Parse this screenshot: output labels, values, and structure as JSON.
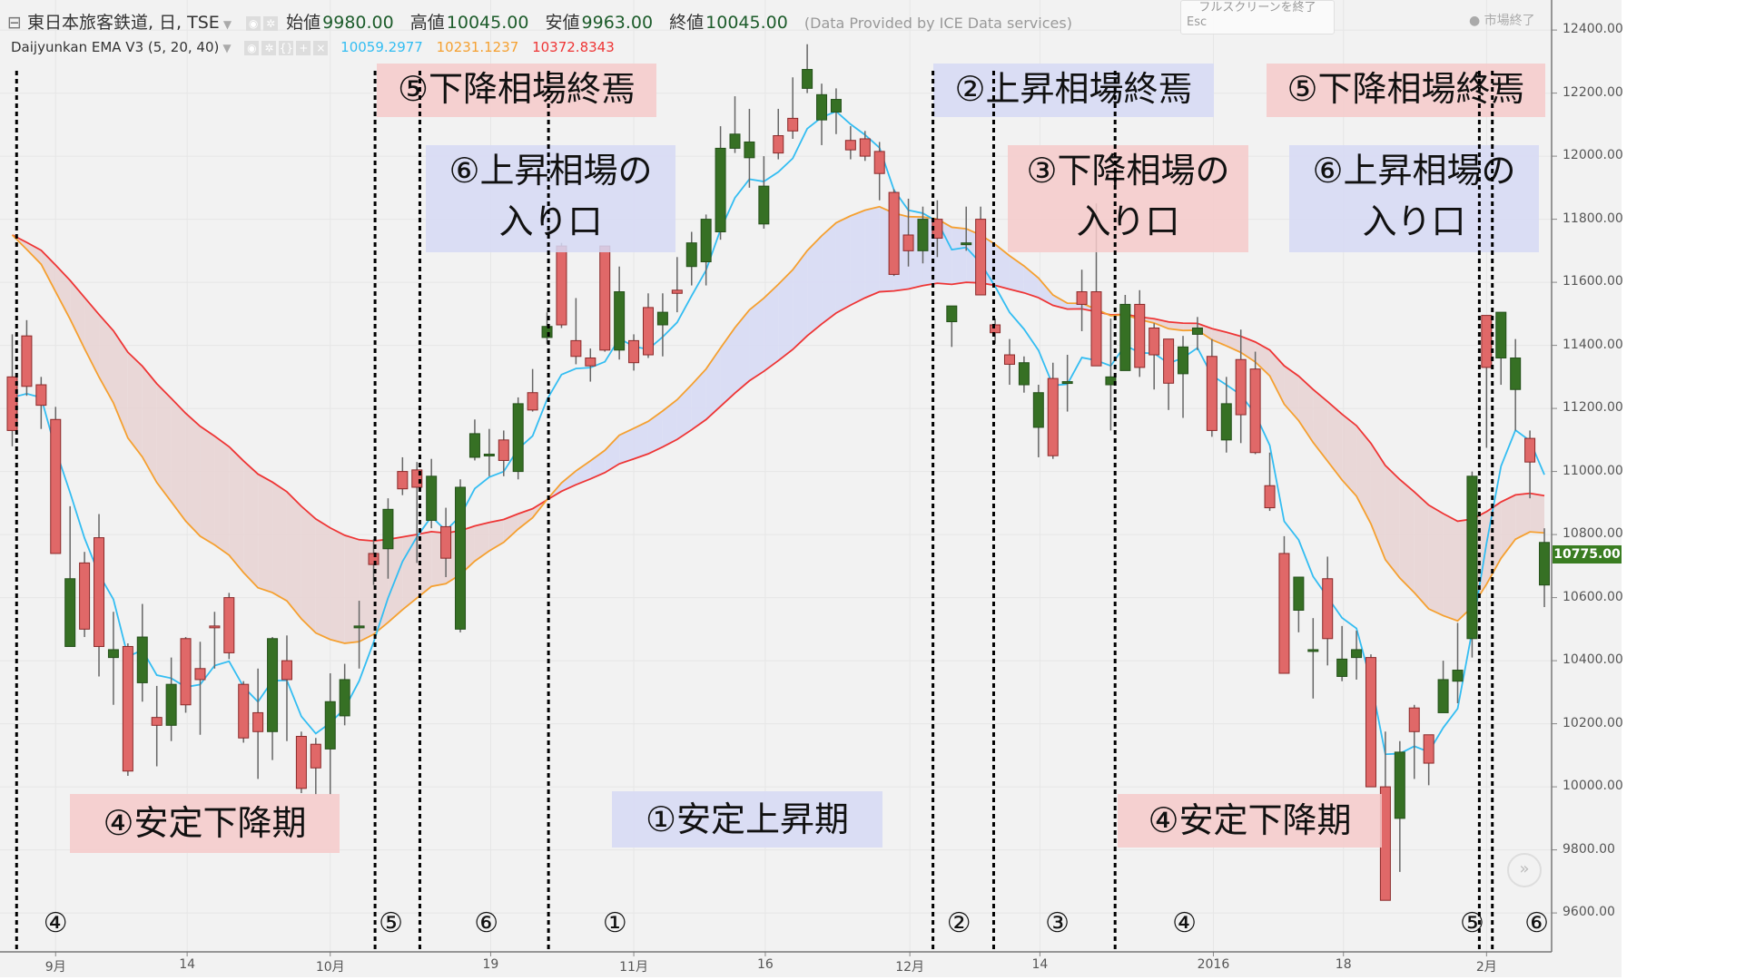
{
  "header": {
    "symbol": "東日本旅客鉄道, 日, TSE",
    "open_label": "始値",
    "open": "9980.00",
    "high_label": "高値",
    "high": "10045.00",
    "low_label": "安値",
    "low": "9963.00",
    "close_label": "終値",
    "close": "10045.00",
    "provider": "(Data Provided by ICE Data services)",
    "tooltip": "フルスクリーンを終了",
    "tooltip_key": "Esc",
    "market_status": "● 市場終了"
  },
  "indicator": {
    "name": "Daijyunkan EMA V3 (5, 20, 40)",
    "ema5": "10059.2977",
    "ema20": "10231.1237",
    "ema40": "10372.8343",
    "colors": {
      "ema5": "#33bdf2",
      "ema20": "#f5a030",
      "ema40": "#ee3535"
    }
  },
  "annotations": {
    "boxes": [
      {
        "line1": "⑤下降相場終焉",
        "line2": "",
        "color": "pink"
      },
      {
        "line1": "⑥上昇相場の",
        "line2": "入り口",
        "color": "blue"
      },
      {
        "line1": "②上昇相場終焉",
        "line2": "",
        "color": "blue"
      },
      {
        "line1": "③下降相場の",
        "line2": "入り口",
        "color": "pink"
      },
      {
        "line1": "⑤下降相場終焉",
        "line2": "",
        "color": "pink"
      },
      {
        "line1": "⑥上昇相場の",
        "line2": "入り口",
        "color": "blue"
      },
      {
        "line1": "④安定下降期",
        "line2": "",
        "color": "pink"
      },
      {
        "line1": "①安定上昇期",
        "line2": "",
        "color": "blue"
      },
      {
        "line1": "④安定下降期",
        "line2": "",
        "color": "pink"
      }
    ],
    "phase_markers": [
      {
        "label": "④",
        "bar": 3.0
      },
      {
        "label": "⑤",
        "bar": 26.2
      },
      {
        "label": "⑥",
        "bar": 32.8
      },
      {
        "label": "①",
        "bar": 41.7
      },
      {
        "label": "②",
        "bar": 65.5
      },
      {
        "label": "③",
        "bar": 72.3
      },
      {
        "label": "④",
        "bar": 81.1
      },
      {
        "label": "⑤",
        "bar": 101.0
      },
      {
        "label": "⑥",
        "bar": 106.3
      }
    ],
    "dividers_bar": [
      0.3,
      25.1,
      28.2,
      37.1,
      63.7,
      67.9,
      76.3,
      101.5,
      102.4
    ]
  },
  "chart_data": {
    "type": "candlestick",
    "ylim": [
      9600,
      12400
    ],
    "grid": true,
    "y_ticks": [
      "12400.00",
      "12200.00",
      "12000.00",
      "11800.00",
      "11600.00",
      "11400.00",
      "11200.00",
      "11000.00",
      "10800.00",
      "10600.00",
      "10400.00",
      "10200.00",
      "10000.00",
      "9800.00",
      "9600.00"
    ],
    "x_ticks": [
      {
        "label": "9月",
        "bar": 3.0
      },
      {
        "label": "14",
        "bar": 12.1
      },
      {
        "label": "10月",
        "bar": 22.0
      },
      {
        "label": "19",
        "bar": 33.1
      },
      {
        "label": "11月",
        "bar": 43.0
      },
      {
        "label": "16",
        "bar": 52.1
      },
      {
        "label": "12月",
        "bar": 62.1
      },
      {
        "label": "14",
        "bar": 71.1
      },
      {
        "label": "2016",
        "bar": 83.1
      },
      {
        "label": "18",
        "bar": 92.1
      },
      {
        "label": "2月",
        "bar": 102.0
      }
    ],
    "last_price": "10775.00",
    "ohlc_fields": [
      "open",
      "high",
      "low",
      "close"
    ],
    "candles": [
      [
        11300,
        11435,
        11080,
        11130
      ],
      [
        11430,
        11480,
        11240,
        11270
      ],
      [
        11275,
        11300,
        11135,
        11210
      ],
      [
        11165,
        11205,
        10740,
        10740
      ],
      [
        10445,
        10890,
        10445,
        10660
      ],
      [
        10710,
        10745,
        10475,
        10500
      ],
      [
        10790,
        10865,
        10350,
        10445
      ],
      [
        10410,
        10555,
        10260,
        10435
      ],
      [
        10445,
        10455,
        10035,
        10050
      ],
      [
        10330,
        10580,
        10270,
        10475
      ],
      [
        10220,
        10320,
        10065,
        10195
      ],
      [
        10195,
        10410,
        10145,
        10325
      ],
      [
        10470,
        10475,
        10235,
        10260
      ],
      [
        10375,
        10460,
        10165,
        10340
      ],
      [
        10510,
        10555,
        10375,
        10505
      ],
      [
        10600,
        10615,
        10405,
        10425
      ],
      [
        10325,
        10335,
        10140,
        10155
      ],
      [
        10235,
        10375,
        10025,
        10175
      ],
      [
        10175,
        10475,
        10085,
        10470
      ],
      [
        10400,
        10480,
        10145,
        10340
      ],
      [
        10160,
        10175,
        9980,
        9995
      ],
      [
        10135,
        10155,
        9975,
        10060
      ],
      [
        10120,
        10360,
        9975,
        10270
      ],
      [
        10225,
        10390,
        10195,
        10340
      ],
      [
        10505,
        10590,
        10375,
        10510
      ],
      [
        10740,
        10785,
        10640,
        10705
      ],
      [
        10755,
        10915,
        10660,
        10880
      ],
      [
        11000,
        11045,
        10925,
        10945
      ],
      [
        11005,
        11030,
        10710,
        10950
      ],
      [
        10845,
        11040,
        10820,
        10985
      ],
      [
        10825,
        10885,
        10665,
        10725
      ],
      [
        10500,
        10975,
        10490,
        10950
      ],
      [
        11045,
        11165,
        11035,
        11120
      ],
      [
        11055,
        11135,
        10985,
        11055
      ],
      [
        11100,
        11130,
        10985,
        11035
      ],
      [
        11000,
        11235,
        10975,
        11215
      ],
      [
        11250,
        11325,
        11190,
        11195
      ],
      [
        11425,
        11505,
        11405,
        11460
      ],
      [
        11715,
        11725,
        11455,
        11465
      ],
      [
        11415,
        11550,
        11340,
        11365
      ],
      [
        11360,
        11390,
        11285,
        11335
      ],
      [
        11715,
        11715,
        11380,
        11385
      ],
      [
        11385,
        11650,
        11355,
        11570
      ],
      [
        11415,
        11435,
        11320,
        11345
      ],
      [
        11520,
        11565,
        11360,
        11370
      ],
      [
        11465,
        11565,
        11365,
        11505
      ],
      [
        11575,
        11680,
        11505,
        11565
      ],
      [
        11650,
        11760,
        11590,
        11725
      ],
      [
        11665,
        11815,
        11590,
        11800
      ],
      [
        11760,
        12095,
        11735,
        12025
      ],
      [
        12025,
        12190,
        12010,
        12070
      ],
      [
        11995,
        12150,
        11900,
        12045
      ],
      [
        11785,
        12000,
        11770,
        11905
      ],
      [
        12065,
        12150,
        11990,
        12010
      ],
      [
        12120,
        12250,
        12055,
        12080
      ],
      [
        12215,
        12355,
        12200,
        12275
      ],
      [
        12115,
        12230,
        12035,
        12195
      ],
      [
        12140,
        12215,
        12070,
        12180
      ],
      [
        12050,
        12095,
        11990,
        12020
      ],
      [
        12055,
        12080,
        11985,
        12000
      ],
      [
        12015,
        12045,
        11860,
        11945
      ],
      [
        11885,
        11895,
        11620,
        11625
      ],
      [
        11750,
        11865,
        11650,
        11700
      ],
      [
        11700,
        11840,
        11660,
        11800
      ],
      [
        11800,
        11860,
        11680,
        11740
      ],
      [
        11475,
        11525,
        11395,
        11525
      ],
      [
        11725,
        11840,
        11700,
        11725
      ],
      [
        11800,
        11840,
        11560,
        11560
      ],
      [
        11465,
        11485,
        11405,
        11440
      ],
      [
        11370,
        11420,
        11275,
        11340
      ],
      [
        11275,
        11365,
        11250,
        11345
      ],
      [
        11140,
        11275,
        11045,
        11250
      ],
      [
        11295,
        11345,
        11040,
        11050
      ],
      [
        11280,
        11370,
        11190,
        11285
      ],
      [
        11570,
        11640,
        11445,
        11530
      ],
      [
        11570,
        11850,
        11335,
        11335
      ],
      [
        11275,
        11485,
        11130,
        11300
      ],
      [
        11320,
        11560,
        11320,
        11530
      ],
      [
        11530,
        11575,
        11300,
        11330
      ],
      [
        11455,
        11470,
        11260,
        11370
      ],
      [
        11420,
        11420,
        11195,
        11280
      ],
      [
        11310,
        11430,
        11170,
        11395
      ],
      [
        11435,
        11490,
        11385,
        11455
      ],
      [
        11365,
        11420,
        11110,
        11130
      ],
      [
        11100,
        11300,
        11060,
        11215
      ],
      [
        11355,
        11450,
        11090,
        11180
      ],
      [
        11325,
        11380,
        11055,
        11060
      ],
      [
        10955,
        11060,
        10875,
        10885
      ],
      [
        10740,
        10795,
        10360,
        10360
      ],
      [
        10560,
        10665,
        10490,
        10665
      ],
      [
        10435,
        10535,
        10280,
        10435
      ],
      [
        10660,
        10730,
        10385,
        10470
      ],
      [
        10350,
        10510,
        10335,
        10405
      ],
      [
        10410,
        10495,
        10340,
        10435
      ],
      [
        10410,
        10420,
        10000,
        10000
      ],
      [
        10000,
        10175,
        9640,
        9640
      ],
      [
        9900,
        10145,
        9730,
        10110
      ],
      [
        10250,
        10260,
        10025,
        10175
      ],
      [
        10165,
        10165,
        10005,
        10075
      ],
      [
        10235,
        10400,
        10235,
        10340
      ],
      [
        10335,
        10520,
        10265,
        10370
      ],
      [
        10470,
        11000,
        10410,
        10985
      ],
      [
        11495,
        11495,
        11075,
        11330
      ],
      [
        11360,
        11505,
        11275,
        11505
      ],
      [
        11260,
        11420,
        11130,
        11360
      ],
      [
        11105,
        11130,
        10915,
        11030
      ],
      [
        10640,
        10820,
        10570,
        10775
      ]
    ],
    "colors": {
      "up": "#367024",
      "down": "#e06868",
      "cloud_bull": "#d6d9f4",
      "cloud_bear": "#e8d2d2"
    }
  }
}
